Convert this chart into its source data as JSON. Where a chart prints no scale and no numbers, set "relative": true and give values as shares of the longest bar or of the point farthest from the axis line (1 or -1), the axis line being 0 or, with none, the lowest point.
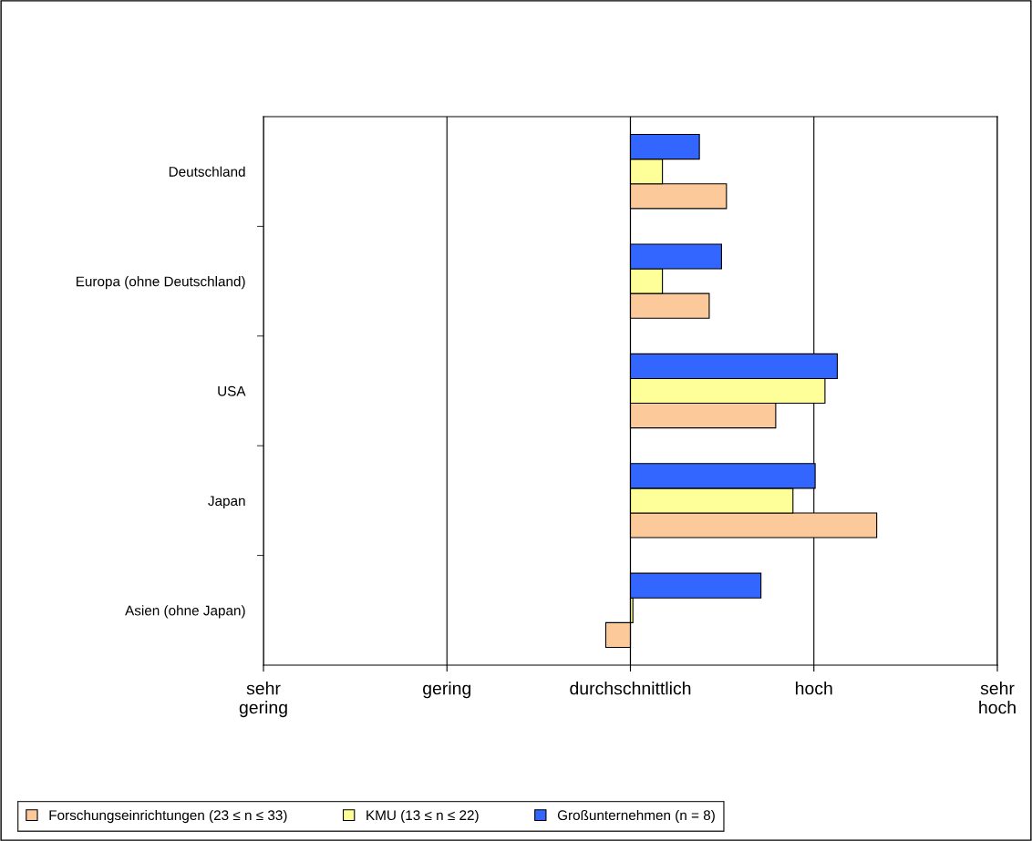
{
  "chart_data": {
    "type": "bar",
    "orientation": "horizontal",
    "relative": true,
    "categories": [
      "Deutschland",
      "Europa (ohne Deutschland)",
      "USA",
      "Japan",
      "Asien (ohne Japan)"
    ],
    "series": [
      {
        "name": "Forschungseinrichtungen (23 ≤ n ≤ 33)",
        "color": "#fcc99b",
        "values": [
          0.39,
          0.32,
          0.59,
          1,
          -0.1
        ]
      },
      {
        "name": "KMU (13 ≤ n ≤ 22)",
        "color": "#ffff99",
        "values": [
          0.13,
          0.13,
          0.79,
          0.66,
          0.01
        ]
      },
      {
        "name": "Großunternehmen (n = 8)",
        "color": "#3366ff",
        "values": [
          0.28,
          0.37,
          0.84,
          0.75,
          0.53
        ]
      }
    ],
    "annotations": [
      "sehr\ngering",
      "gering",
      "durchschnittlich",
      "hoch",
      "sehr\nhoch"
    ],
    "grid": "x",
    "legend": "bottom"
  }
}
